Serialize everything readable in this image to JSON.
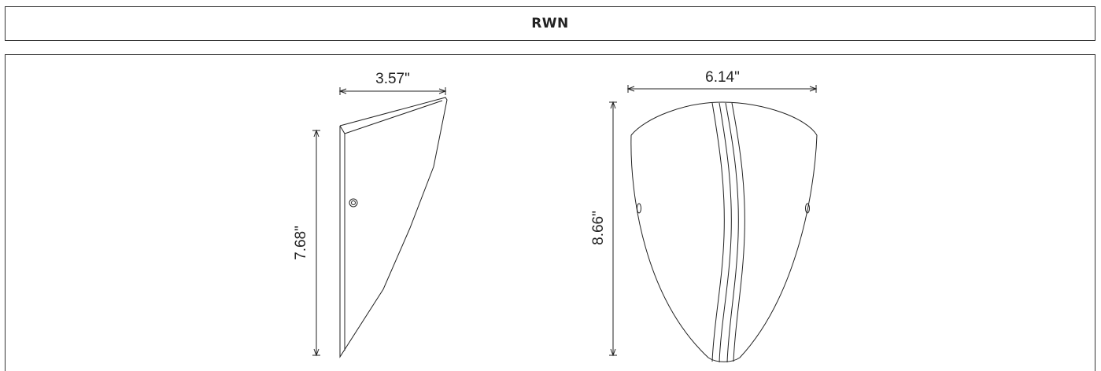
{
  "header": {
    "title": "RWN"
  },
  "side_view": {
    "width_label": "3.57\"",
    "height_label": "7.68\""
  },
  "front_view": {
    "width_label": "6.14\"",
    "height_label": "8.66\""
  }
}
